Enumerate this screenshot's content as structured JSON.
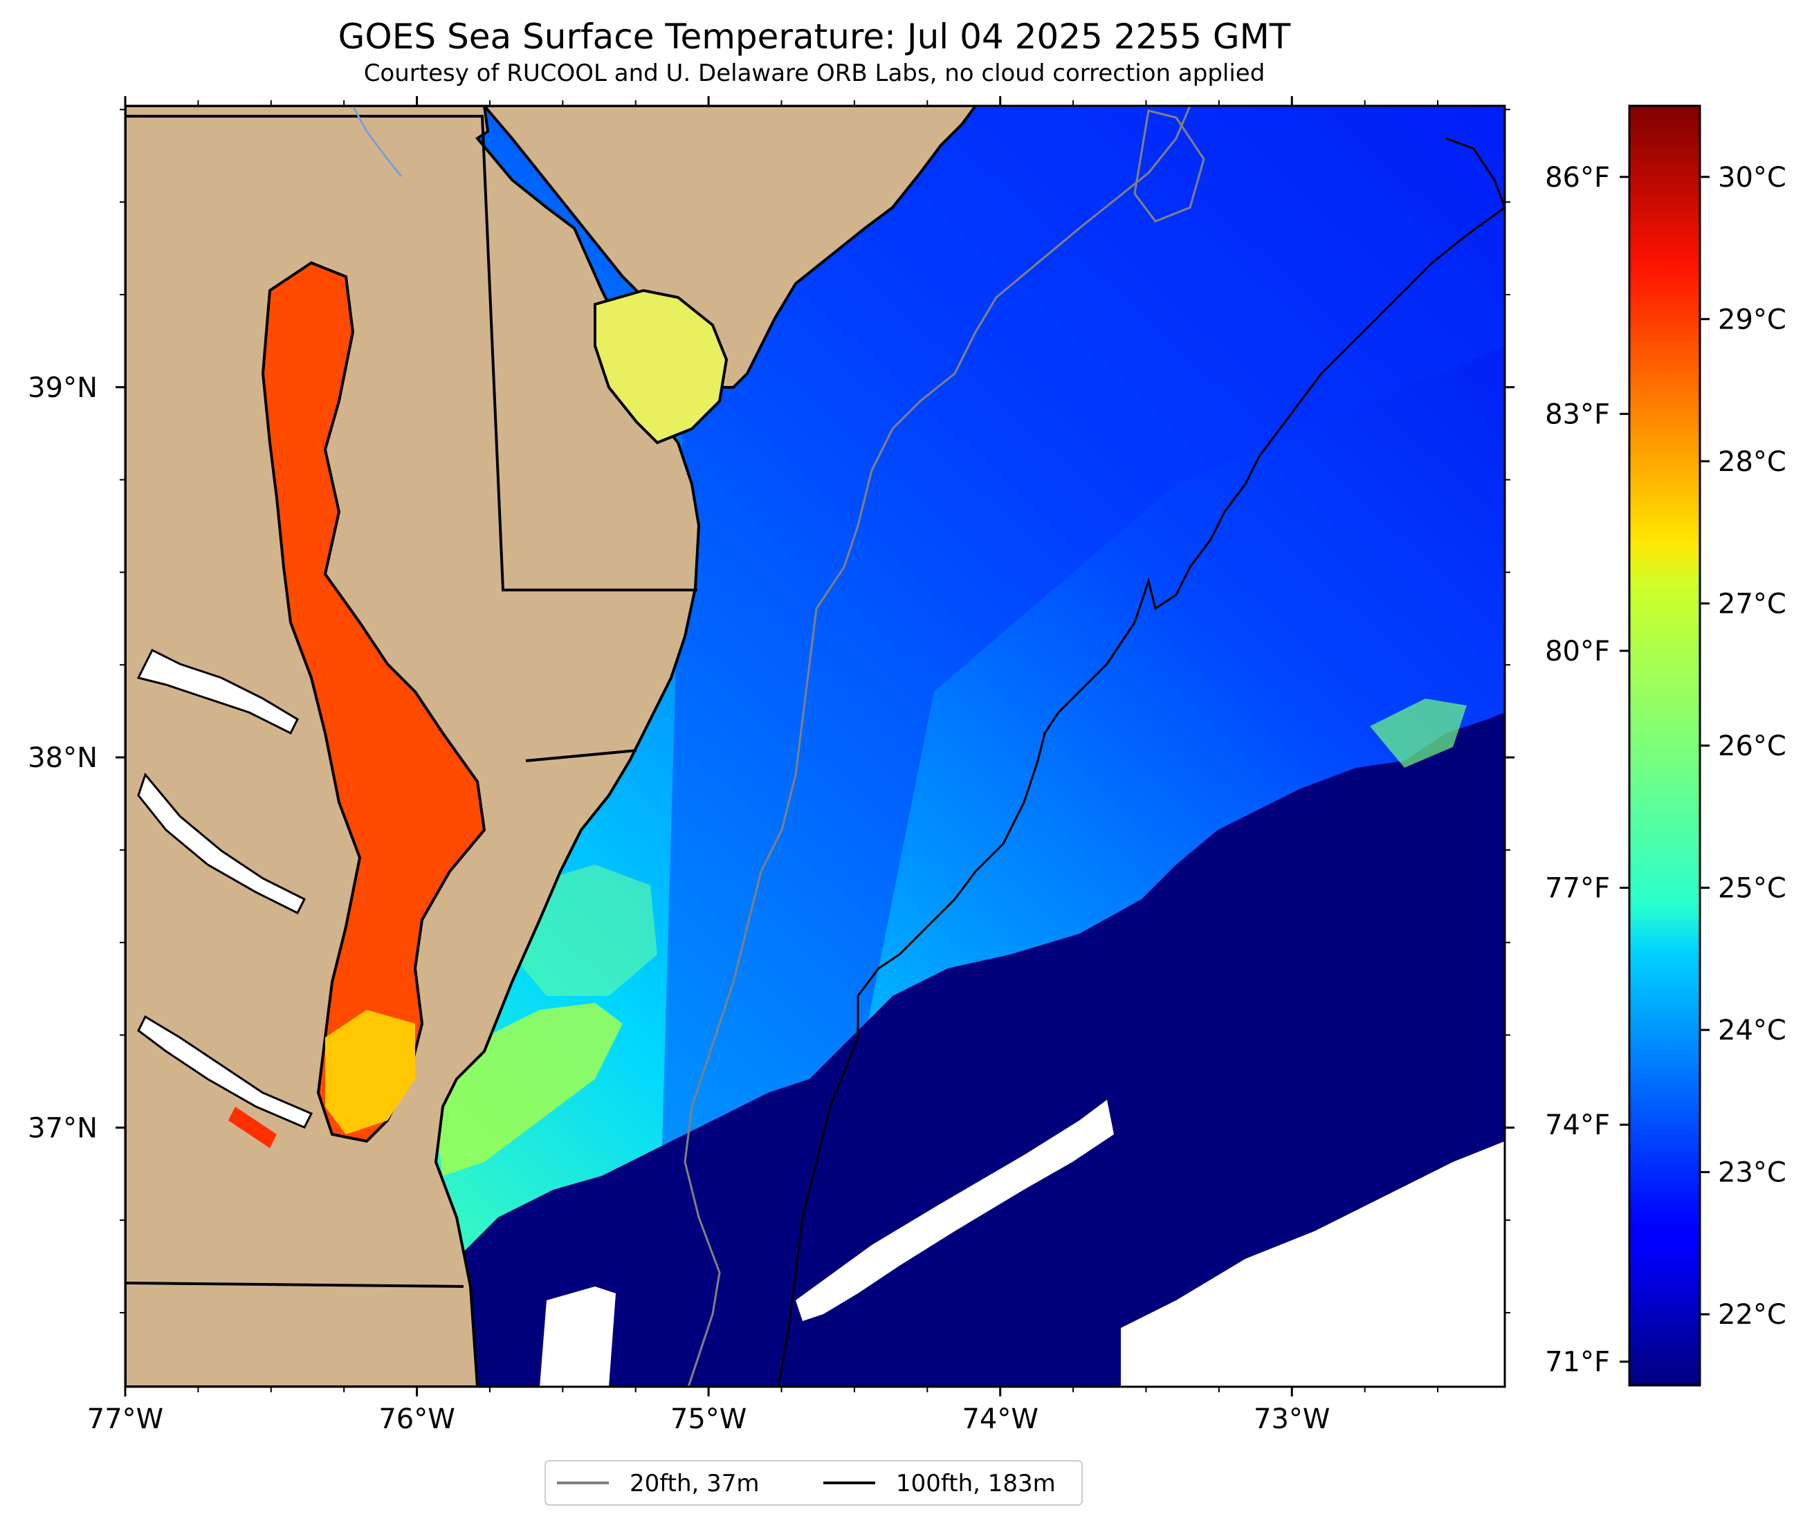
{
  "header": {
    "title": "GOES Sea Surface Temperature: Jul 04 2025 2255 GMT",
    "subtitle": "Courtesy of RUCOOL and U. Delaware ORB Labs, no cloud correction applied"
  },
  "map": {
    "extent": {
      "lon_min": -77.0,
      "lon_max": -72.27,
      "lat_min": 36.3,
      "lat_max": 39.76
    },
    "lon_ticks": [
      {
        "value": -77,
        "label": "77°W"
      },
      {
        "value": -76,
        "label": "76°W"
      },
      {
        "value": -75,
        "label": "75°W"
      },
      {
        "value": -74,
        "label": "74°W"
      },
      {
        "value": -73,
        "label": "73°W"
      }
    ],
    "lat_ticks": [
      {
        "value": 39,
        "label": "39°N"
      },
      {
        "value": 38,
        "label": "38°N"
      },
      {
        "value": 37,
        "label": "37°N"
      }
    ],
    "colors": {
      "land": "#d2b48c",
      "coastline": "#000000",
      "isobath_20fth": "#808080",
      "isobath_100fth": "#000000",
      "river": "#7a9fd4",
      "no_data": "#ffffff",
      "cold_mass": "#00007c"
    }
  },
  "legend": {
    "items": [
      {
        "label": "20fth, 37m",
        "color": "#808080"
      },
      {
        "label": "100fth, 183m",
        "color": "#000000"
      }
    ]
  },
  "colorbar": {
    "colormap": "jet",
    "range_c": [
      21.5,
      30.5
    ],
    "celsius_ticks": [
      {
        "value": 22,
        "label": "22°C"
      },
      {
        "value": 23,
        "label": "23°C"
      },
      {
        "value": 24,
        "label": "24°C"
      },
      {
        "value": 25,
        "label": "25°C"
      },
      {
        "value": 26,
        "label": "26°C"
      },
      {
        "value": 27,
        "label": "27°C"
      },
      {
        "value": 28,
        "label": "28°C"
      },
      {
        "value": 29,
        "label": "29°C"
      },
      {
        "value": 30,
        "label": "30°C"
      }
    ],
    "fahrenheit_ticks": [
      {
        "value": 71,
        "label": "71°F"
      },
      {
        "value": 74,
        "label": "74°F"
      },
      {
        "value": 77,
        "label": "77°F"
      },
      {
        "value": 80,
        "label": "80°F"
      },
      {
        "value": 83,
        "label": "83°F"
      },
      {
        "value": 86,
        "label": "86°F"
      }
    ]
  }
}
